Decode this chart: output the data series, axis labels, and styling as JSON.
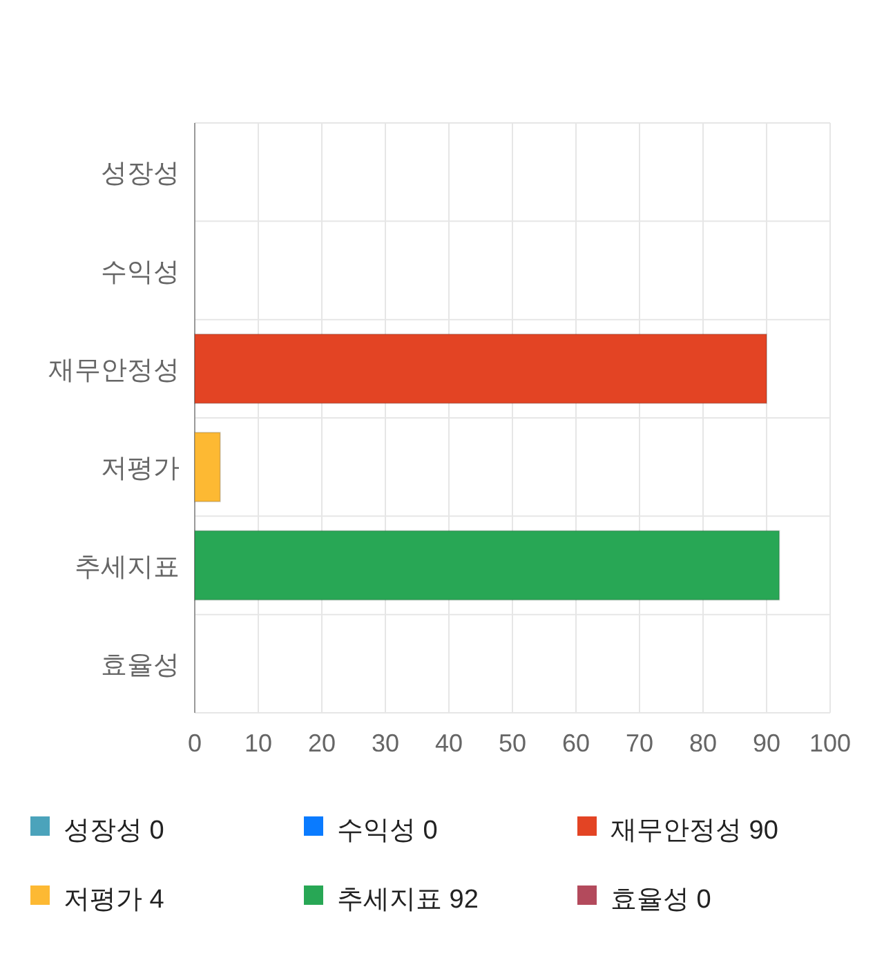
{
  "chart_data": {
    "type": "bar",
    "orientation": "horizontal",
    "categories": [
      "성장성",
      "수익성",
      "재무안정성",
      "저평가",
      "추세지표",
      "효율성"
    ],
    "series": [
      {
        "name": "성장성 0",
        "color": "#4ba3bb",
        "values": [
          0,
          null,
          null,
          null,
          null,
          null
        ]
      },
      {
        "name": "수익성 0",
        "color": "#0a7bff",
        "values": [
          null,
          0,
          null,
          null,
          null,
          null
        ]
      },
      {
        "name": "재무안정성 90",
        "color": "#e34424",
        "values": [
          null,
          null,
          90,
          null,
          null,
          null
        ]
      },
      {
        "name": "저평가 4",
        "color": "#fdb933",
        "values": [
          null,
          null,
          null,
          4,
          null,
          null
        ]
      },
      {
        "name": "추세지표 92",
        "color": "#28a755",
        "values": [
          null,
          null,
          null,
          null,
          92,
          null
        ]
      },
      {
        "name": "효율성 0",
        "color": "#b34a5c",
        "values": [
          null,
          null,
          null,
          null,
          null,
          0
        ]
      }
    ],
    "xlim": [
      0,
      100
    ],
    "xticks": [
      0,
      10,
      20,
      30,
      40,
      50,
      60,
      70,
      80,
      90,
      100
    ],
    "grid": true,
    "legend": "bottom"
  }
}
